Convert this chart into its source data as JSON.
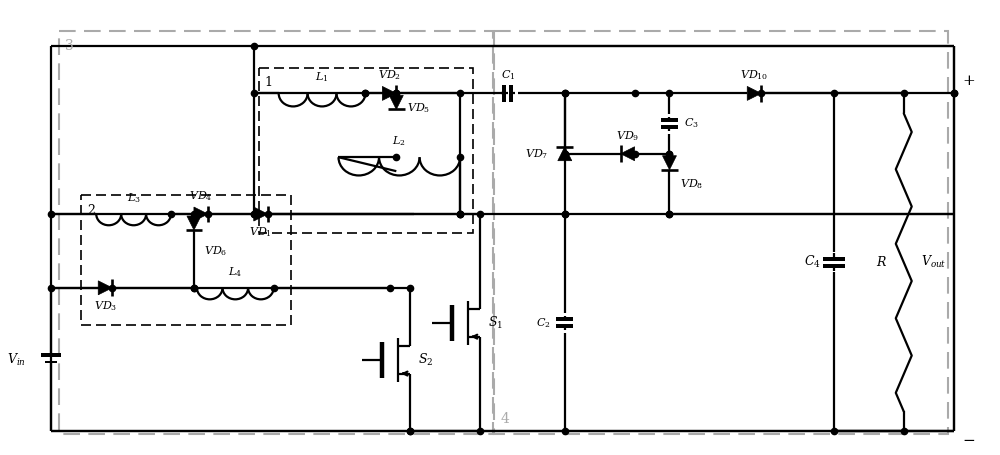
{
  "fig_width": 10.0,
  "fig_height": 4.55,
  "dpi": 100,
  "bg_color": "#ffffff",
  "lc": "#000000",
  "lw": 1.6,
  "dc": "#aaaaaa"
}
